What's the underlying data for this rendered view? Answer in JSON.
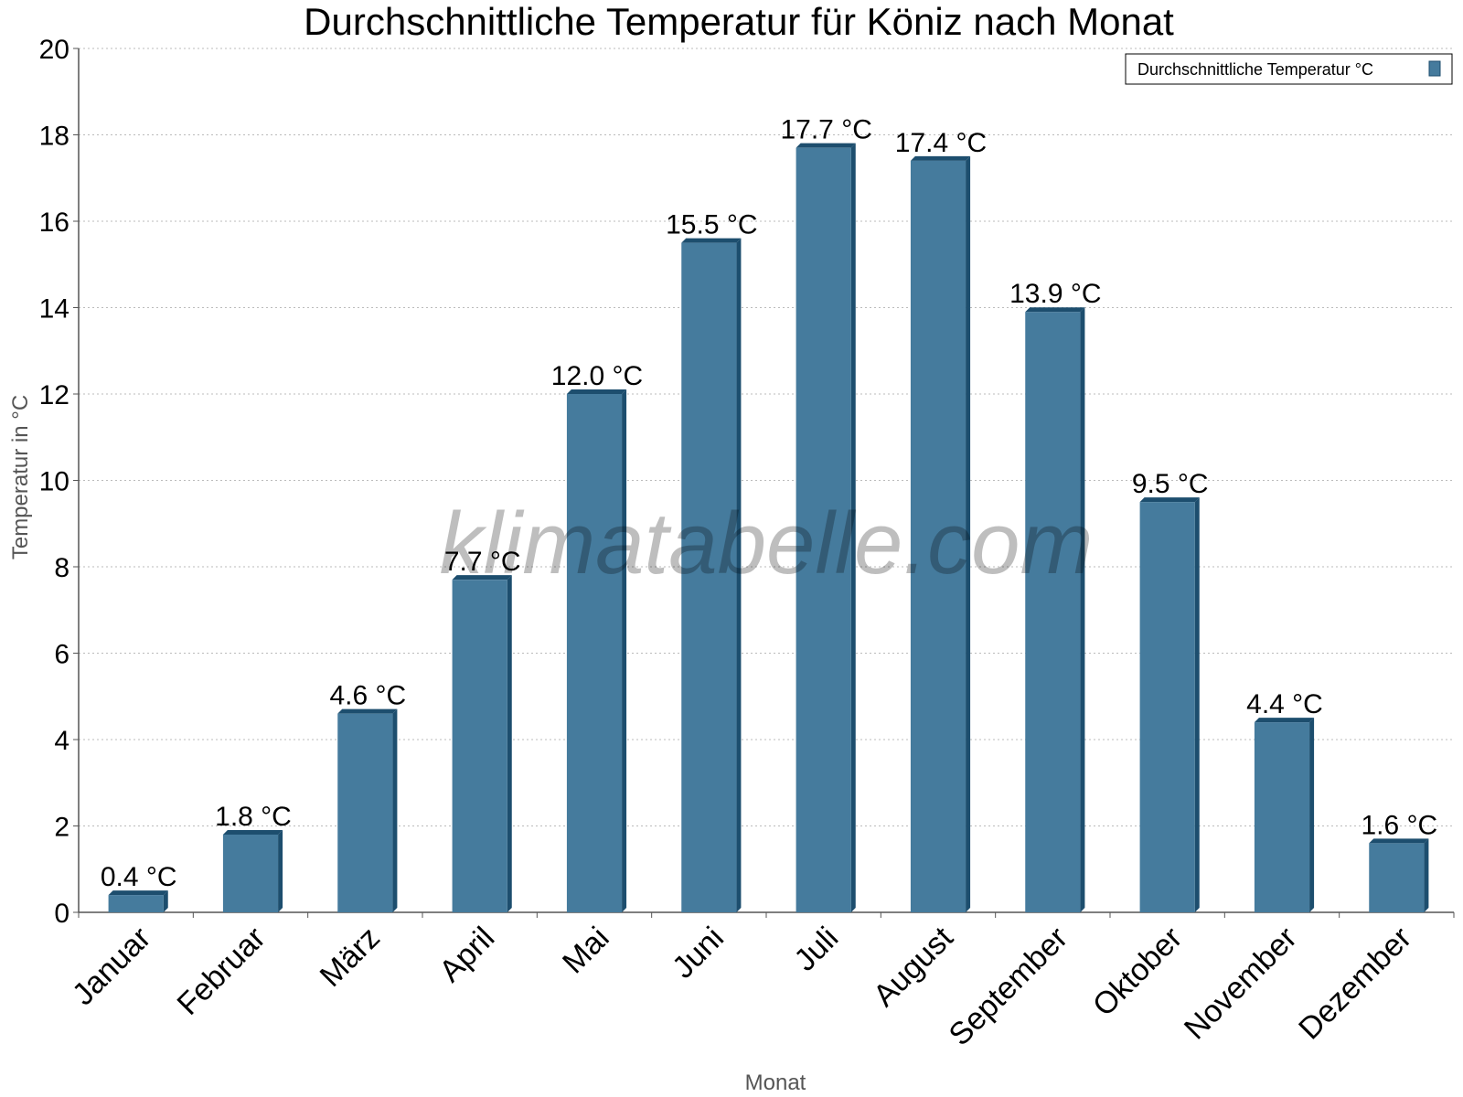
{
  "chart_data": {
    "type": "bar",
    "title": "Durchschnittliche Temperatur für Köniz nach Monat",
    "xlabel": "Monat",
    "ylabel": "Temperatur in °C",
    "ylim": [
      0,
      20
    ],
    "yticks": [
      0,
      2,
      4,
      6,
      8,
      10,
      12,
      14,
      16,
      18,
      20
    ],
    "grid": true,
    "legend_position": "top-right",
    "categories": [
      "Januar",
      "Februar",
      "März",
      "April",
      "Mai",
      "Juni",
      "Juli",
      "August",
      "September",
      "Oktober",
      "November",
      "Dezember"
    ],
    "series": [
      {
        "name": "Durchschnittliche Temperatur °C",
        "values": [
          0.4,
          1.8,
          4.6,
          7.7,
          12.0,
          15.5,
          17.7,
          17.4,
          13.9,
          9.5,
          4.4,
          1.6
        ],
        "labels": [
          "0.4 °C",
          "1.8 °C",
          "4.6 °C",
          "7.7 °C",
          "12.0 °C",
          "15.5 °C",
          "17.7 °C",
          "17.4 °C",
          "13.9 °C",
          "9.5 °C",
          "4.4 °C",
          "1.6 °C"
        ]
      }
    ],
    "colors": {
      "bar": "#457b9d",
      "bar_dark": "#1d4e6e",
      "grid": "#bbbbbb",
      "axis": "#555555"
    }
  },
  "watermark": "klimatabelle.com"
}
